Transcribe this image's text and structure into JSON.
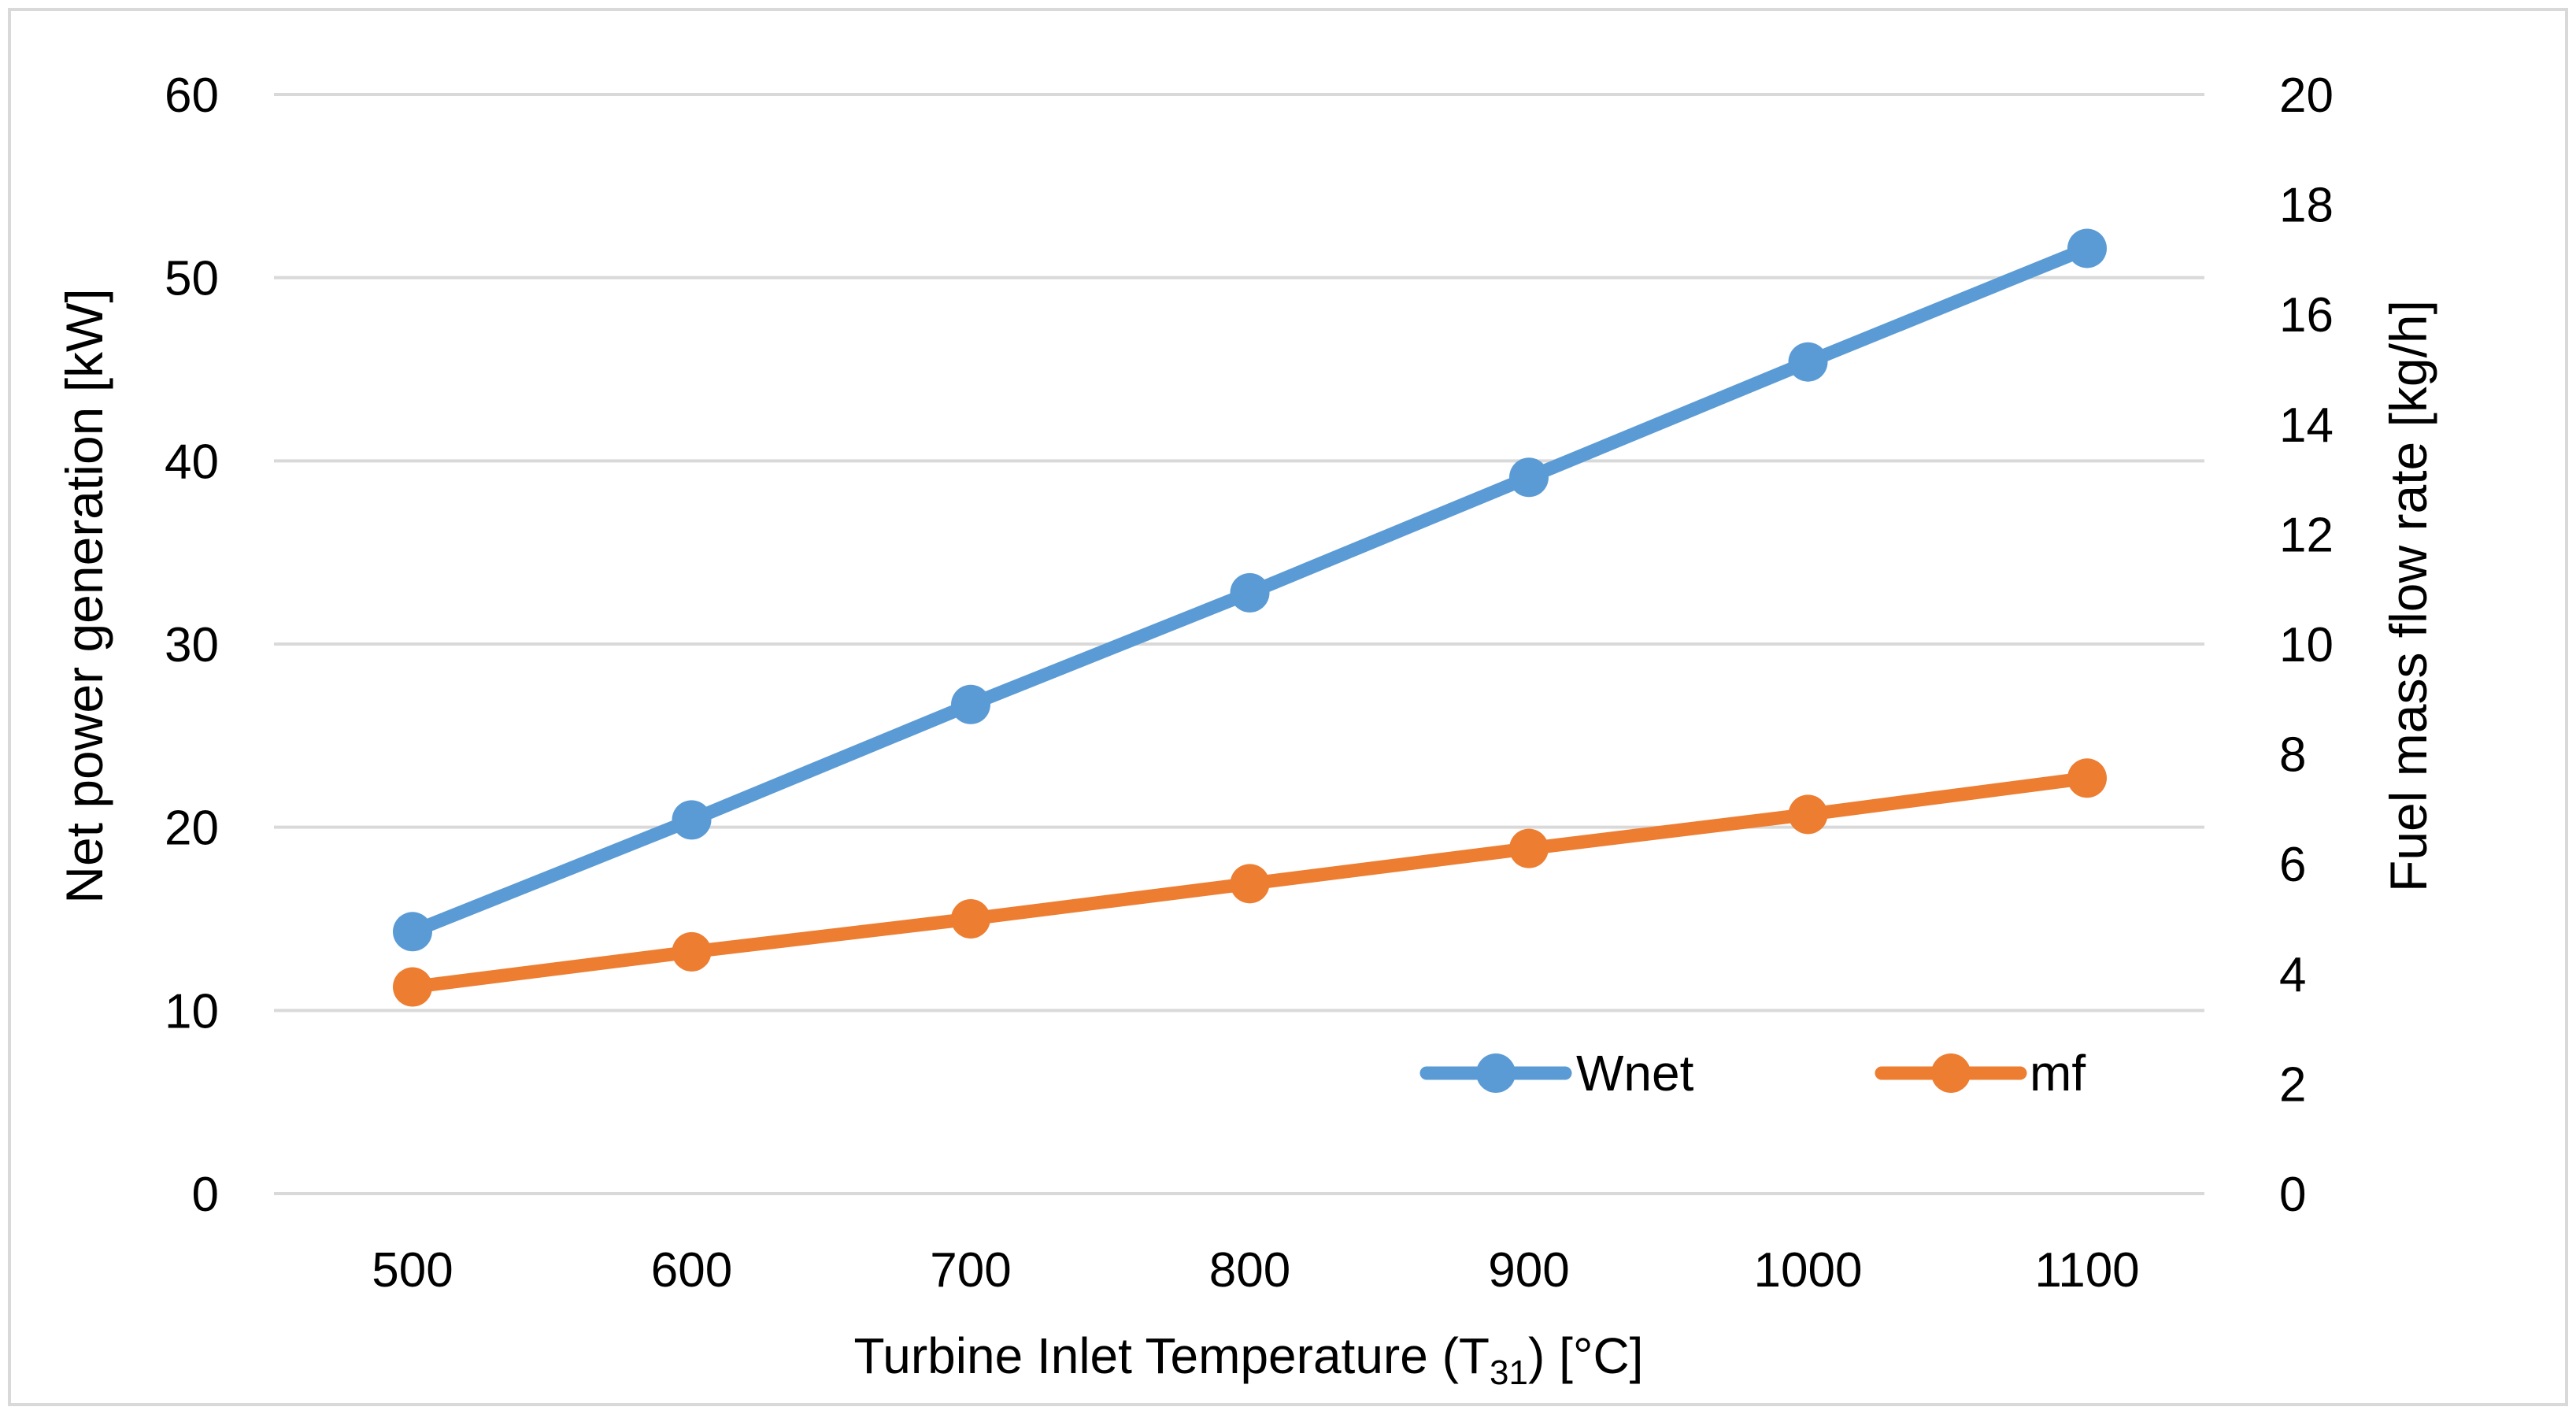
{
  "chart_data": {
    "type": "line",
    "title": "",
    "x": [
      500,
      600,
      700,
      800,
      900,
      1000,
      1100
    ],
    "x_tick_labels": [
      "500",
      "600",
      "700",
      "800",
      "900",
      "1000",
      "1100"
    ],
    "xlabel": {
      "main": "Turbine Inlet Temperature (T",
      "subscript": "31",
      "suffix": ") [°C]"
    },
    "ylabel_left": "Net power generation [kW]",
    "ylabel_right": "Fuel mass flow rate  [kg/h]",
    "ylim_left": [
      0,
      60
    ],
    "ylim_right": [
      0,
      20
    ],
    "y_left_ticks": [
      0,
      10,
      20,
      30,
      40,
      50,
      60
    ],
    "y_right_ticks": [
      0,
      2,
      4,
      6,
      8,
      10,
      12,
      14,
      16,
      18,
      20
    ],
    "y_left_tick_labels": [
      "0",
      "10",
      "20",
      "30",
      "40",
      "50",
      "60"
    ],
    "y_right_tick_labels": [
      "0",
      "2",
      "4",
      "6",
      "8",
      "10",
      "12",
      "14",
      "16",
      "18",
      "20"
    ],
    "grid": true,
    "legend_position": "bottom-right",
    "series": [
      {
        "name": "Wnet",
        "axis": "left",
        "color": "#5B9BD5",
        "values": [
          14.3,
          20.4,
          26.7,
          32.8,
          39.1,
          45.4,
          51.6
        ]
      },
      {
        "name": "mf",
        "axis": "right",
        "color": "#ED7D31",
        "values": [
          3.76,
          4.4,
          5.0,
          5.64,
          6.28,
          6.9,
          7.56
        ]
      }
    ]
  }
}
